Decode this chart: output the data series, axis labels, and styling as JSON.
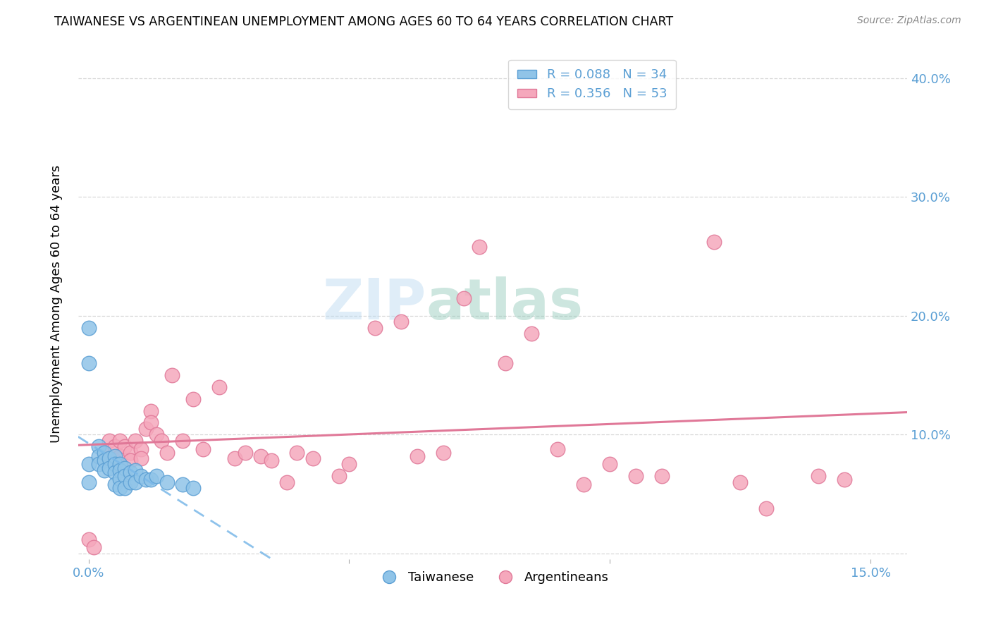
{
  "title": "TAIWANESE VS ARGENTINEAN UNEMPLOYMENT AMONG AGES 60 TO 64 YEARS CORRELATION CHART",
  "source": "Source: ZipAtlas.com",
  "ylabel_label": "Unemployment Among Ages 60 to 64 years",
  "x_min": -0.002,
  "x_max": 0.157,
  "y_min": -0.005,
  "y_max": 0.425,
  "taiwan_R": 0.088,
  "taiwan_N": 34,
  "arg_R": 0.356,
  "arg_N": 53,
  "taiwan_color": "#90c4e8",
  "taiwan_edge": "#5b9fd4",
  "arg_color": "#f5a8bc",
  "arg_edge": "#e07898",
  "watermark_text": "ZIPatlas",
  "taiwan_x": [
    0.0,
    0.0,
    0.0,
    0.0,
    0.002,
    0.002,
    0.002,
    0.003,
    0.003,
    0.003,
    0.004,
    0.004,
    0.005,
    0.005,
    0.005,
    0.005,
    0.006,
    0.006,
    0.006,
    0.006,
    0.007,
    0.007,
    0.007,
    0.008,
    0.008,
    0.009,
    0.009,
    0.01,
    0.011,
    0.012,
    0.013,
    0.015,
    0.018,
    0.02
  ],
  "taiwan_y": [
    0.19,
    0.16,
    0.075,
    0.06,
    0.09,
    0.082,
    0.075,
    0.085,
    0.078,
    0.07,
    0.08,
    0.072,
    0.082,
    0.075,
    0.068,
    0.058,
    0.075,
    0.07,
    0.063,
    0.055,
    0.072,
    0.065,
    0.055,
    0.068,
    0.06,
    0.07,
    0.06,
    0.065,
    0.062,
    0.062,
    0.065,
    0.06,
    0.058,
    0.055
  ],
  "arg_x": [
    0.0,
    0.001,
    0.003,
    0.004,
    0.004,
    0.005,
    0.005,
    0.006,
    0.006,
    0.007,
    0.008,
    0.008,
    0.009,
    0.01,
    0.01,
    0.011,
    0.012,
    0.012,
    0.013,
    0.014,
    0.015,
    0.016,
    0.018,
    0.02,
    0.022,
    0.025,
    0.028,
    0.03,
    0.033,
    0.035,
    0.038,
    0.04,
    0.043,
    0.048,
    0.05,
    0.055,
    0.06,
    0.063,
    0.068,
    0.072,
    0.075,
    0.08,
    0.085,
    0.09,
    0.095,
    0.1,
    0.105,
    0.11,
    0.12,
    0.125,
    0.13,
    0.14,
    0.145
  ],
  "arg_y": [
    0.012,
    0.005,
    0.085,
    0.095,
    0.08,
    0.09,
    0.078,
    0.095,
    0.082,
    0.09,
    0.085,
    0.078,
    0.095,
    0.088,
    0.08,
    0.105,
    0.12,
    0.11,
    0.1,
    0.095,
    0.085,
    0.15,
    0.095,
    0.13,
    0.088,
    0.14,
    0.08,
    0.085,
    0.082,
    0.078,
    0.06,
    0.085,
    0.08,
    0.065,
    0.075,
    0.19,
    0.195,
    0.082,
    0.085,
    0.215,
    0.258,
    0.16,
    0.185,
    0.088,
    0.058,
    0.075,
    0.065,
    0.065,
    0.262,
    0.06,
    0.038,
    0.065,
    0.062
  ],
  "legend_taiwan_label": "R = 0.088   N = 34",
  "legend_arg_label": "R = 0.356   N = 53",
  "bottom_legend_taiwan": "Taiwanese",
  "bottom_legend_arg": "Argentineans",
  "background_color": "#ffffff",
  "grid_color": "#d8d8d8"
}
